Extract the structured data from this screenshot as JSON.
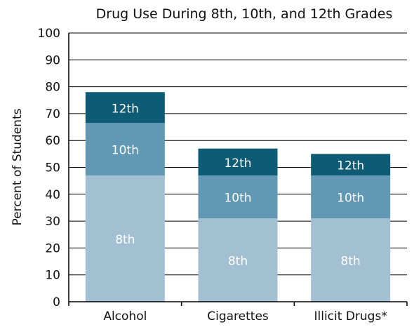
{
  "chart_data": {
    "type": "bar",
    "stacked": true,
    "title": "Drug Use During 8th, 10th, and 12th Grades",
    "xlabel": "",
    "ylabel": "Percent of Students",
    "ylim": [
      0,
      100
    ],
    "yticks": [
      0,
      10,
      20,
      30,
      40,
      50,
      60,
      70,
      80,
      90,
      100
    ],
    "grid": true,
    "categories": [
      "Alcohol",
      "Cigarettes",
      "Illicit Drugs*"
    ],
    "series": [
      {
        "name": "8th",
        "values": [
          47,
          31,
          31
        ],
        "color": "#a3bfd2",
        "label_color": "#ffffff"
      },
      {
        "name": "10th",
        "values": [
          19.5,
          16,
          16
        ],
        "color": "#6199b5",
        "label_color": "#ffffff"
      },
      {
        "name": "12th",
        "values": [
          11.5,
          10,
          8
        ],
        "color": "#0d5b74",
        "label_color": "#ffffff"
      }
    ]
  }
}
